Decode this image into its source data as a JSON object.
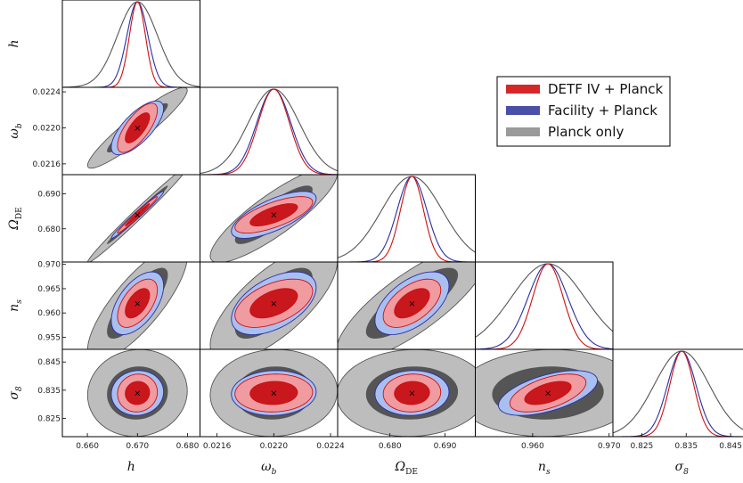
{
  "chart_data": {
    "type": "corner",
    "parameters": [
      {
        "key": "h",
        "label": "h",
        "sub": "",
        "center": 0.67,
        "range": [
          0.655,
          0.6825
        ],
        "ticks": [
          0.66,
          0.67,
          0.68
        ],
        "tick_labels": [
          "0.660",
          "0.670",
          "0.680"
        ],
        "sigma": {
          "planck": 0.004,
          "facility": 0.0021,
          "detf": 0.0016
        }
      },
      {
        "key": "omega_b",
        "label": "ω",
        "sub": "b",
        "center": 0.022,
        "range": [
          0.02148,
          0.02245
        ],
        "ticks": [
          0.0216,
          0.022,
          0.0224
        ],
        "tick_labels": [
          "0.0216",
          "0.0220",
          "0.0224"
        ],
        "sigma": {
          "planck": 0.00018,
          "facility": 0.00012,
          "detf": 0.00011
        }
      },
      {
        "key": "omega_de",
        "label": "Ω",
        "sub": "DE",
        "center": 0.684,
        "range": [
          0.6705,
          0.6955
        ],
        "ticks": [
          0.68,
          0.69
        ],
        "tick_labels": [
          "0.680",
          "0.690"
        ],
        "sigma": {
          "planck": 0.0055,
          "facility": 0.0027,
          "detf": 0.0021
        }
      },
      {
        "key": "n_s",
        "label": "n",
        "sub": "s",
        "center": 0.962,
        "range": [
          0.9525,
          0.9705
        ],
        "ticks": [
          0.955,
          0.96,
          0.965,
          0.97
        ],
        "tick_labels": [
          "0.955",
          "0.960",
          "0.965",
          "0.970"
        ],
        "tick_labels_bottom": [
          "0.960",
          "0.970"
        ],
        "ticks_bottom": [
          0.96,
          0.97
        ],
        "sigma": {
          "planck": 0.0048,
          "facility": 0.0026,
          "detf": 0.002
        }
      },
      {
        "key": "sigma_8",
        "label": "σ",
        "sub": "8",
        "center": 0.834,
        "range": [
          0.8185,
          0.8495
        ],
        "ticks": [
          0.825,
          0.835,
          0.845
        ],
        "tick_labels": [
          "0.825",
          "0.835",
          "0.845"
        ],
        "sigma": {
          "planck": 0.0062,
          "facility": 0.0032,
          "detf": 0.0027
        }
      }
    ],
    "correlations": {
      "planck": {
        "1,0": 0.93,
        "2,0": 0.99,
        "2,1": 0.86,
        "3,0": 0.8,
        "3,1": 0.72,
        "3,2": 0.8,
        "4,0": 0.05,
        "4,1": 0.05,
        "4,2": 0.05,
        "4,3": 0.05
      },
      "facility": {
        "1,0": 0.72,
        "2,0": 0.985,
        "2,1": 0.7,
        "3,0": 0.55,
        "3,1": 0.5,
        "3,2": 0.55,
        "4,0": 0.05,
        "4,1": 0.05,
        "4,2": 0.05,
        "4,3": 0.55
      },
      "detf": {
        "1,0": 0.72,
        "2,0": 0.985,
        "2,1": 0.7,
        "3,0": 0.55,
        "3,1": 0.5,
        "3,2": 0.55,
        "4,0": 0.05,
        "4,1": 0.05,
        "4,2": 0.05,
        "4,3": 0.55
      }
    },
    "series": [
      {
        "name": "DETF IV + Planck",
        "key": "detf",
        "color": "#d62728",
        "inner_color": "#c8171d",
        "outer_color": "#f09ba0",
        "line": "#cc1111"
      },
      {
        "name": "Facility + Planck",
        "key": "facility",
        "color": "#4a4fa8",
        "inner_color": "#6e86d6",
        "outer_color": "#a9bff0",
        "line": "#2a2fa0"
      },
      {
        "name": "Planck only",
        "key": "planck",
        "color": "#9a9a9a",
        "inner_color": "#555555",
        "outer_color": "#bdbdbd",
        "line": "#555555"
      }
    ],
    "marker": "×",
    "legend_position": "upper-right"
  }
}
